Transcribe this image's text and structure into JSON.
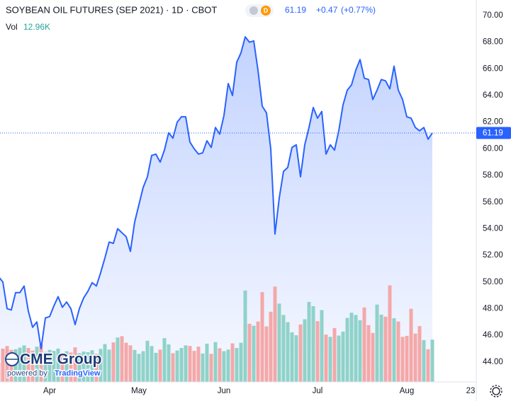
{
  "chart_data": {
    "type": "area",
    "title": "SOYBEAN OIL FUTURES (SEP 2021) · 1D · CBOT",
    "badge": "D",
    "last_price": "61.19",
    "change": "+0.47",
    "change_pct": "(+0.77%)",
    "color": "#2962ff",
    "categories": [
      null,
      null,
      null,
      null,
      null,
      null,
      null,
      null,
      null,
      null,
      null,
      null,
      "Apr",
      null,
      null,
      null,
      null,
      null,
      null,
      null,
      null,
      null,
      null,
      null,
      null,
      null,
      null,
      null,
      null,
      null,
      null,
      null,
      null,
      "May",
      null,
      null,
      null,
      null,
      null,
      null,
      null,
      null,
      null,
      null,
      null,
      null,
      null,
      null,
      null,
      null,
      null,
      null,
      null,
      "Jun",
      null,
      null,
      null,
      null,
      null,
      null,
      null,
      null,
      null,
      null,
      null,
      null,
      null,
      null,
      null,
      null,
      null,
      null,
      null,
      null,
      null,
      "Jul",
      null,
      null,
      null,
      null,
      null,
      null,
      null,
      null,
      null,
      null,
      null,
      null,
      null,
      null,
      null,
      null,
      null,
      null,
      null,
      null,
      "Aug",
      null,
      null,
      null,
      null,
      null,
      null,
      null,
      null,
      null,
      null,
      null,
      null,
      null,
      null,
      "23"
    ],
    "values": [
      50.4,
      50.0,
      48.0,
      47.9,
      49.2,
      49.2,
      49.7,
      47.8,
      46.6,
      47.0,
      45.0,
      47.3,
      47.4,
      48.2,
      48.9,
      48.1,
      48.5,
      48.0,
      46.8,
      48.0,
      48.8,
      49.3,
      49.95,
      49.7,
      50.7,
      51.8,
      53.0,
      52.9,
      54.0,
      53.7,
      53.4,
      52.3,
      54.5,
      55.8,
      57.1,
      57.9,
      59.5,
      59.6,
      59.0,
      59.9,
      61.2,
      60.8,
      62.0,
      62.4,
      62.4,
      60.5,
      60.0,
      59.6,
      59.7,
      60.6,
      60.1,
      61.6,
      61.1,
      62.5,
      64.9,
      64.0,
      66.5,
      67.2,
      68.4,
      68.0,
      68.1,
      65.9,
      63.2,
      62.7,
      60.0,
      53.6,
      56.3,
      58.3,
      58.6,
      60.1,
      60.3,
      57.9,
      60.3,
      61.6,
      63.1,
      62.3,
      62.8,
      59.6,
      60.3,
      59.9,
      61.35,
      63.3,
      64.4,
      64.8,
      65.9,
      66.7,
      65.3,
      65.2,
      63.7,
      64.4,
      65.2,
      65.1,
      64.5,
      66.2,
      64.4,
      63.7,
      62.4,
      62.3,
      61.6,
      61.35,
      61.6,
      60.72,
      61.19,
      null,
      null,
      null,
      null,
      null,
      null,
      null,
      null,
      null
    ],
    "volume": {
      "label": "Vol",
      "value_label": "12.96K",
      "up_color": "#8fd2c9",
      "down_color": "#f4a8a9",
      "label_color": "#26a69a",
      "values": [
        5.8,
        10.2,
        11.0,
        9.8,
        10.0,
        10.5,
        11.2,
        10.4,
        9.6,
        10.8,
        11.5,
        9.2,
        9.8,
        9.5,
        10.2,
        8.9,
        9.4,
        9.0,
        10.6,
        8.8,
        9.3,
        9.1,
        9.7,
        8.6,
        10.1,
        11.6,
        9.9,
        12.1,
        13.6,
        14.0,
        12.0,
        11.2,
        9.8,
        8.6,
        9.4,
        12.6,
        11.0,
        8.9,
        9.9,
        13.4,
        11.5,
        8.8,
        9.6,
        10.4,
        11.2,
        11.0,
        9.5,
        10.8,
        8.7,
        11.7,
        8.6,
        12.2,
        10.3,
        9.4,
        9.9,
        11.8,
        10.4,
        12.0,
        28.0,
        17.8,
        17.2,
        18.5,
        27.5,
        17.0,
        21.5,
        29.2,
        24.0,
        20.5,
        18.3,
        15.2,
        14.3,
        17.6,
        19.2,
        24.5,
        23.2,
        18.6,
        22.0,
        14.5,
        13.8,
        16.5,
        14.2,
        15.4,
        19.6,
        21.2,
        20.5,
        18.9,
        22.8,
        17.4,
        15.0,
        23.7,
        20.6,
        20.0,
        29.6,
        19.5,
        18.5,
        13.8,
        14.1,
        22.4,
        14.8,
        17.1,
        12.8,
        10.0,
        12.96,
        null,
        null,
        null,
        null,
        null,
        null,
        null,
        null,
        null
      ],
      "ylim": [
        0,
        117
      ]
    },
    "ylim": [
      42.5,
      71.17
    ],
    "yticks": [
      {
        "value": 70,
        "label": "70.00"
      },
      {
        "value": 68,
        "label": "68.00"
      },
      {
        "value": 66,
        "label": "66.00"
      },
      {
        "value": 64,
        "label": "64.00"
      },
      {
        "value": 62,
        "label": "62.00"
      },
      {
        "value": 60,
        "label": "60.00"
      },
      {
        "value": 58,
        "label": "58.00"
      },
      {
        "value": 56,
        "label": "56.00"
      },
      {
        "value": 54,
        "label": "54.00"
      },
      {
        "value": 52,
        "label": "52.00"
      },
      {
        "value": 50,
        "label": "50.00"
      },
      {
        "value": 48,
        "label": "48.00"
      },
      {
        "value": 46,
        "label": "46.00"
      },
      {
        "value": 44,
        "label": "44.00"
      }
    ],
    "grid": false,
    "logo": {
      "name": "CME Group",
      "powered": "powered by",
      "brand": "TradingView"
    }
  }
}
